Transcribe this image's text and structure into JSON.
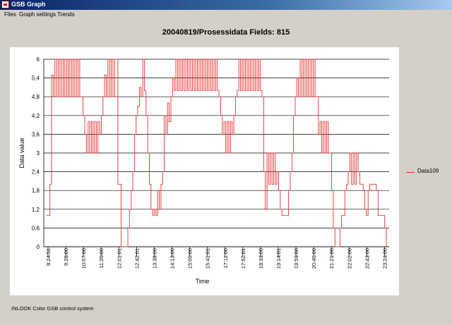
{
  "window": {
    "title": "GSB Graph"
  },
  "menu": [
    {
      "label": "Files"
    },
    {
      "label": "Graph settings"
    },
    {
      "label": "Trends"
    }
  ],
  "status_text": "INLOOK Color GSB control system",
  "colors": {
    "series": "#e83030",
    "plot_bg": "#ffffff",
    "window_bg": "#d4d0c8",
    "grid": "#000000"
  },
  "chart_data": {
    "type": "line",
    "title": "20040819/Prosessidata Fields: 815",
    "xlabel": "Time",
    "ylabel": "Data value",
    "ylim": [
      0,
      6
    ],
    "y_ticks": [
      "0",
      "0,6",
      "1,2",
      "1,8",
      "2,4",
      "3",
      "3,6",
      "4,2",
      "4,8",
      "5,4",
      "6"
    ],
    "x_ticks": [
      "8:24:51",
      "9:26:00",
      "10:07:00",
      "11:20:00",
      "12:01:01",
      "12:42:01",
      "13:38:00",
      "14:13:00",
      "15:00:00",
      "15:41:01",
      "17:11:00",
      "17:52:01",
      "18:33:00",
      "19:14:01",
      "19:59:00",
      "20:40:00",
      "21:21:00",
      "22:02:00",
      "22:43:00",
      "23:24:00"
    ],
    "grid": true,
    "legend": "right",
    "series": [
      {
        "name": "Data109",
        "values": [
          1,
          1,
          2,
          5.5,
          4.8,
          6,
          4.8,
          6,
          4.8,
          6,
          4.8,
          6,
          4.8,
          6,
          4.8,
          6,
          4.8,
          6,
          4.8,
          6,
          4.8,
          4.8,
          4.2,
          3.6,
          3,
          4.0,
          3,
          4.0,
          3,
          4.0,
          3,
          4.0,
          3.6,
          4.2,
          4.8,
          5.5,
          4.8,
          6,
          4.8,
          6,
          4.8,
          6,
          6,
          2,
          2,
          0,
          0,
          0,
          0,
          0.6,
          1.2,
          1.8,
          2.4,
          3.6,
          4.2,
          4.5,
          5.1,
          4.8,
          6,
          5.0,
          4.2,
          3,
          2,
          1.2,
          1,
          1.2,
          1,
          1.8,
          1.2,
          2,
          2.4,
          4.2,
          3.6,
          4.6,
          4.0,
          4.8,
          5.4,
          5.0,
          6,
          5.0,
          6,
          5.0,
          6,
          5.0,
          6,
          5.0,
          6,
          5.0,
          6,
          5.0,
          6,
          5.0,
          6,
          5.0,
          6,
          5.0,
          6,
          5.0,
          6,
          5.0,
          6,
          5.0,
          6,
          5.0,
          4.8,
          4.2,
          3.6,
          4.0,
          3,
          4.0,
          3,
          4.0,
          3.6,
          4.2,
          4.8,
          5.0,
          6,
          5.0,
          6,
          5.0,
          6,
          5.0,
          6,
          5.0,
          6,
          5.0,
          6,
          5.0,
          6,
          5.0,
          4.8,
          2.4,
          1.2,
          3,
          2,
          3,
          2,
          3,
          2,
          2.4,
          1.8,
          1.2,
          1,
          1,
          1,
          1,
          1.8,
          2.4,
          3,
          4.2,
          4.8,
          5.4,
          4.8,
          6,
          4.8,
          6,
          4.8,
          6,
          4.8,
          6,
          4.8,
          6,
          4.8,
          4.8,
          3.6,
          4.0,
          3,
          4.0,
          3,
          4.0,
          3,
          3,
          1.8,
          0.6,
          0,
          0,
          0,
          0.6,
          1,
          1,
          1.8,
          2,
          2.4,
          3,
          2,
          3,
          2,
          3,
          2.4,
          2,
          2,
          1.8,
          1.2,
          1,
          1.8,
          2,
          2,
          2,
          2,
          1.8,
          1,
          1,
          1,
          1,
          0.6,
          0
        ]
      }
    ]
  }
}
